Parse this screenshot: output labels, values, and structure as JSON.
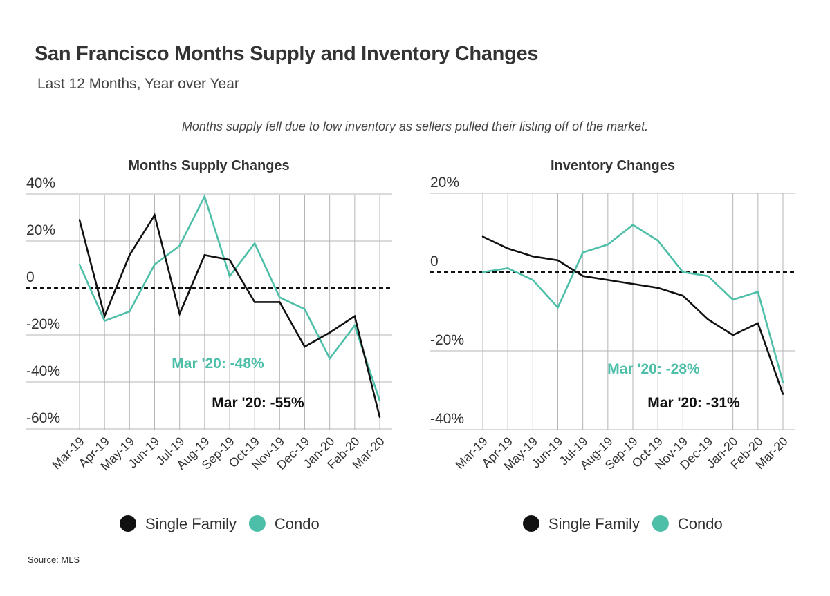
{
  "header": {
    "title": "San Francisco Months Supply and Inventory Changes",
    "subtitle": "Last 12 Months, Year over Year",
    "note": "Months supply fell due to low inventory as sellers pulled their listing off of the market."
  },
  "footer": {
    "source": "Source: MLS"
  },
  "colors": {
    "single_family": "#111111",
    "condo": "#4dbfa8",
    "grid": "#b5b5b5",
    "text": "#333333"
  },
  "chart_data": [
    {
      "type": "line",
      "title": "Months Supply Changes",
      "categories": [
        "Mar-19",
        "Apr-19",
        "May-19",
        "Jun-19",
        "Jul-19",
        "Aug-19",
        "Sep-19",
        "Oct-19",
        "Nov-19",
        "Dec-19",
        "Jan-20",
        "Feb-20",
        "Mar-20"
      ],
      "series": [
        {
          "name": "Single Family",
          "color": "#111111",
          "values": [
            29,
            -12,
            14,
            31,
            -11,
            14,
            12,
            -6,
            -6,
            -25,
            -19,
            -12,
            -55
          ]
        },
        {
          "name": "Condo",
          "color": "#4dbfa8",
          "values": [
            10,
            -14,
            -10,
            10,
            18,
            39,
            5,
            19,
            -4,
            -9,
            -30,
            -16,
            -48
          ]
        }
      ],
      "yticks": [
        {
          "value": 40,
          "label": "40%"
        },
        {
          "value": 20,
          "label": "20%"
        },
        {
          "value": 0,
          "label": "0"
        },
        {
          "value": -20,
          "label": "-20%"
        },
        {
          "value": -40,
          "label": "-40%"
        },
        {
          "value": -60,
          "label": "-60%"
        }
      ],
      "ylim": [
        -60,
        40
      ],
      "grid": true,
      "annotations": [
        {
          "text": "Mar '20: -48%",
          "series": "Condo"
        },
        {
          "text": "Mar '20: -55%",
          "series": "Single Family"
        }
      ],
      "legend": {
        "position": "bottom",
        "items": [
          "Single Family",
          "Condo"
        ]
      }
    },
    {
      "type": "line",
      "title": "Inventory Changes",
      "categories": [
        "Mar-19",
        "Apr-19",
        "May-19",
        "Jun-19",
        "Jul-19",
        "Aug-19",
        "Sep-19",
        "Oct-19",
        "Nov-19",
        "Dec-19",
        "Jan-20",
        "Feb-20",
        "Mar-20"
      ],
      "series": [
        {
          "name": "Single Family",
          "color": "#111111",
          "values": [
            9,
            6,
            4,
            3,
            -1,
            -2,
            -3,
            -4,
            -6,
            -12,
            -16,
            -13,
            -31
          ]
        },
        {
          "name": "Condo",
          "color": "#4dbfa8",
          "values": [
            0,
            1,
            -2,
            -9,
            5,
            7,
            12,
            8,
            0,
            -1,
            -7,
            -5,
            -28
          ]
        }
      ],
      "yticks": [
        {
          "value": 20,
          "label": "20%"
        },
        {
          "value": 0,
          "label": "0"
        },
        {
          "value": -20,
          "label": "-20%"
        },
        {
          "value": -40,
          "label": "-40%"
        }
      ],
      "ylim": [
        -40,
        20
      ],
      "grid": true,
      "annotations": [
        {
          "text": "Mar '20: -28%",
          "series": "Condo"
        },
        {
          "text": "Mar '20: -31%",
          "series": "Single Family"
        }
      ],
      "legend": {
        "position": "bottom",
        "items": [
          "Single Family",
          "Condo"
        ]
      }
    }
  ]
}
